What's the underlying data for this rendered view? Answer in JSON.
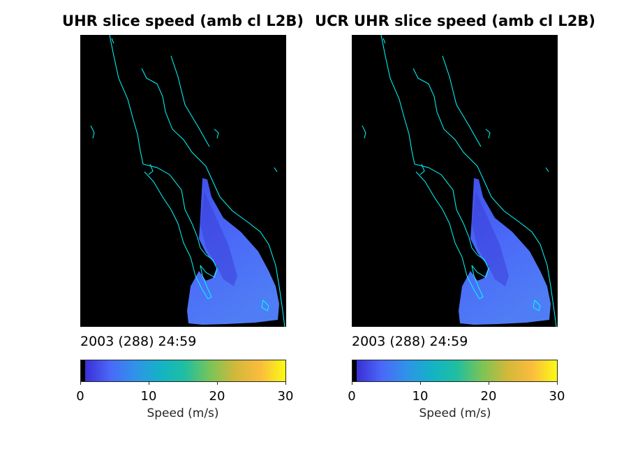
{
  "chart_data": [
    {
      "type": "heatmap",
      "title": "UHR slice speed (amb cl L2B)",
      "timestamp": "2003 (288) 24:59",
      "colorbar": {
        "label": "Speed (m/s)",
        "range": [
          0,
          30
        ],
        "ticks": [
          0,
          10,
          20,
          30
        ],
        "colormap": [
          "#000000",
          "#3a2fd6",
          "#4a68f8",
          "#2f93e8",
          "#14b2c6",
          "#1fbfa0",
          "#7ac456",
          "#d2b83a",
          "#fbbc3d",
          "#f9fa14"
        ]
      },
      "coastline_color": "#00ffff",
      "background": "#000000"
    },
    {
      "type": "heatmap",
      "title": "UCR UHR slice speed (amb cl L2B)",
      "timestamp": "2003 (288) 24:59",
      "colorbar": {
        "label": "Speed (m/s)",
        "range": [
          0,
          30
        ],
        "ticks": [
          0,
          10,
          20,
          30
        ],
        "colormap": [
          "#000000",
          "#3a2fd6",
          "#4a68f8",
          "#2f93e8",
          "#14b2c6",
          "#1fbfa0",
          "#7ac456",
          "#d2b83a",
          "#fbbc3d",
          "#f9fa14"
        ]
      },
      "coastline_color": "#00ffff",
      "background": "#000000"
    }
  ]
}
